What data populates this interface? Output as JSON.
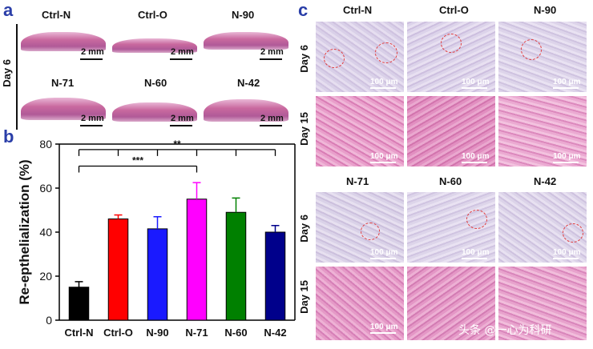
{
  "panel_a": {
    "label": "a",
    "row_label": "Day 6",
    "samples": [
      "Ctrl-N",
      "Ctrl-O",
      "N-90",
      "N-71",
      "N-60",
      "N-42"
    ],
    "scale_bar": "2 mm"
  },
  "panel_b": {
    "label": "b"
  },
  "panel_c": {
    "label": "c",
    "top_columns": [
      "Ctrl-N",
      "Ctrl-O",
      "N-90"
    ],
    "bottom_columns": [
      "N-71",
      "N-60",
      "N-42"
    ],
    "row_labels": [
      "Day 6",
      "Day 15",
      "Day 6",
      "Day 15"
    ],
    "scale_bar": "100 μm"
  },
  "watermark": "头条 @一心为科研",
  "colors": {
    "panel_label": "#2a3ea8",
    "he_stain_dark": "#b05a98",
    "he_stain_light": "#e9c6dd",
    "histo_day6": "#d9cfe6",
    "histo_day15": "#e7a3cc",
    "circle": "#e23a3a"
  },
  "chart_data": {
    "type": "bar",
    "categories": [
      "Ctrl-N",
      "Ctrl-O",
      "N-90",
      "N-71",
      "N-60",
      "N-42"
    ],
    "values": [
      15,
      46,
      41.5,
      55,
      49,
      40
    ],
    "errors": [
      2.5,
      1.8,
      5.5,
      7.5,
      6.5,
      3
    ],
    "colors": [
      "#000000",
      "#ff0000",
      "#1a1aff",
      "#ff00ff",
      "#008000",
      "#00008b"
    ],
    "title": "",
    "xlabel": "",
    "ylabel": "Re-epthelialization (%)",
    "ylim": [
      0,
      80
    ],
    "yticks": [
      0,
      20,
      40,
      60,
      80
    ],
    "grid": false,
    "significance": [
      {
        "from": "Ctrl-N",
        "to": "N-71",
        "label": "***"
      },
      {
        "from": "Ctrl-N",
        "to": "N-42",
        "label": "**",
        "bracket_members": [
          "Ctrl-N",
          "Ctrl-O",
          "N-90",
          "N-71",
          "N-60",
          "N-42"
        ]
      }
    ]
  }
}
